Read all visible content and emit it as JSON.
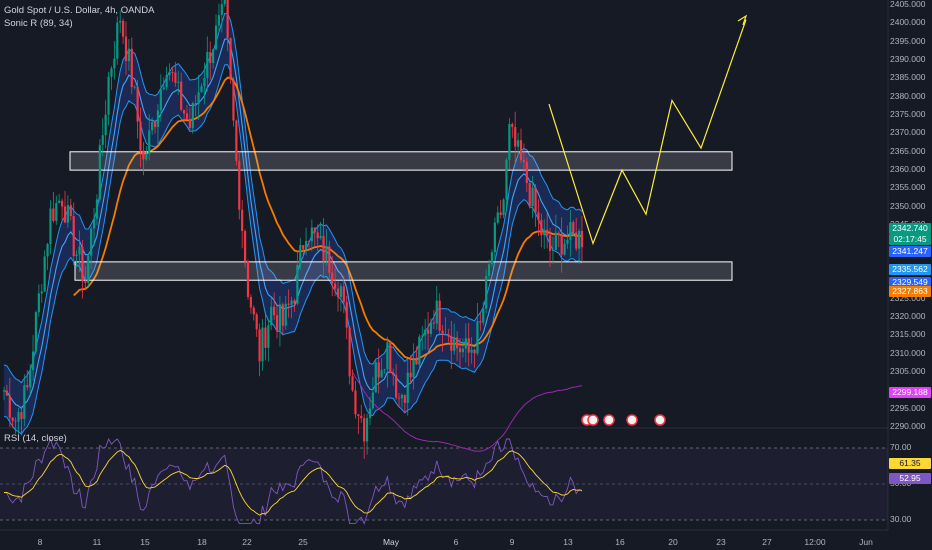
{
  "header": {
    "symbol": "Gold Spot / U.S. Dollar, 4h, OANDA",
    "indicator": "Sonic R (89, 34)",
    "rsi": "RSI (14, close)"
  },
  "price_axis": [
    "2405.000",
    "2400.000",
    "2395.000",
    "2390.000",
    "2385.000",
    "2380.000",
    "2375.000",
    "2370.000",
    "2365.000",
    "2360.000",
    "2355.000",
    "2350.000",
    "2345.000",
    "2325.000",
    "2320.000",
    "2315.000",
    "2310.000",
    "2305.000",
    "2295.000",
    "2290.000"
  ],
  "price_tags": {
    "last": "2342.740",
    "countdown": "02:17:45",
    "ema_fast": "2341.247",
    "ema_mid": "2335.562",
    "band": "2329.549",
    "ema_slow": "2327.863",
    "ema_long": "2299.188"
  },
  "rsi_axis": [
    "70.00",
    "50.00",
    "30.00"
  ],
  "rsi_tags": {
    "rsi": "61.35",
    "signal": "52.95"
  },
  "time_axis": [
    "8",
    "11",
    "15",
    "18",
    "22",
    "25",
    "May",
    "6",
    "9",
    "13",
    "16",
    "20",
    "23",
    "27",
    "12:00",
    "Jun"
  ],
  "colors": {
    "up": "#089981",
    "down": "#f23645",
    "ema": "#2962ff",
    "ema_slow": "#f57c00",
    "projection": "#ffeb3b",
    "rsi": "#7e57c2"
  },
  "chart_data": {
    "type": "candlestick",
    "title": "Gold Spot / U.S. Dollar, 4h, OANDA",
    "ylim": [
      2287,
      2407
    ],
    "zones": [
      {
        "low": 2360,
        "high": 2365
      },
      {
        "low": 2330,
        "high": 2335
      }
    ],
    "projection": [
      2378,
      2340,
      2360,
      2348,
      2379,
      2366,
      2401
    ],
    "rsi_ylim": [
      30,
      70
    ]
  }
}
